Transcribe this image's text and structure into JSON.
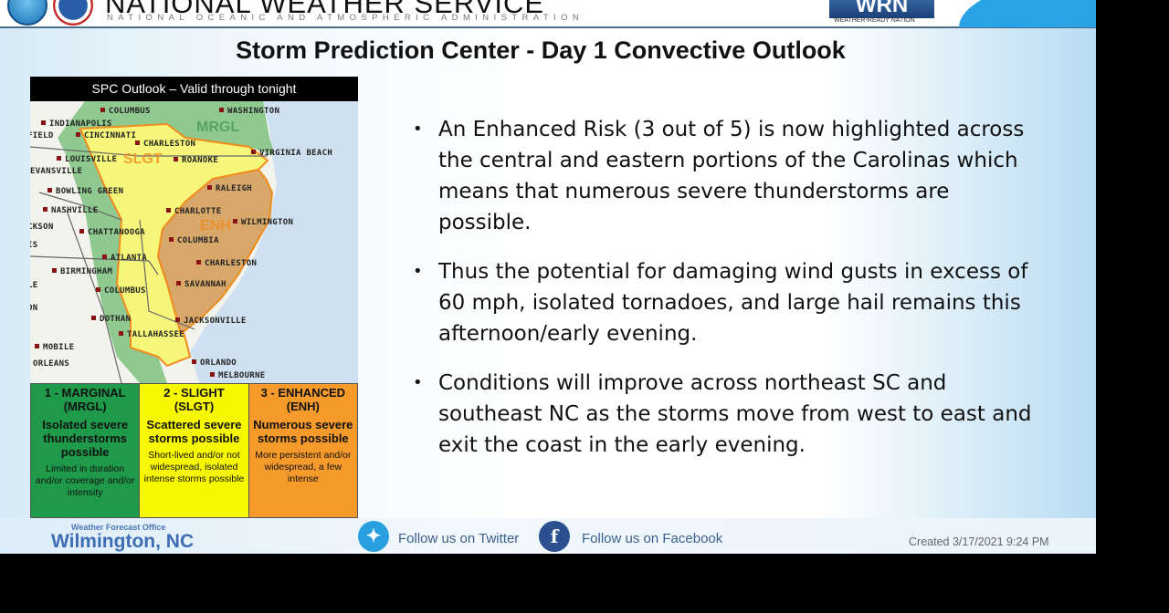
{
  "header": {
    "org_title": "NATIONAL WEATHER SERVICE",
    "org_subtitle": "NATIONAL OCEANIC AND ATMOSPHERIC ADMINISTRATION",
    "wrn_logo": "WRN",
    "wrn_tagline": "WEATHER-READY NATION"
  },
  "title": "Storm Prediction Center - Day 1 Convective Outlook",
  "map": {
    "label": "SPC Outlook – Valid through tonight",
    "zones": {
      "slight": "SLGT",
      "enhanced": "ENH",
      "marginal": "MRGL"
    },
    "cities": [
      "COLUMBUS",
      "WASHINGTON",
      "INDIANAPOLIS",
      "FIELD",
      "CINCINNATI",
      "CHARLESTON",
      "VIRGINIA BEACH",
      "LOUISVILLE",
      "ROANOKE",
      "EVANSVILLE",
      "BOWLING GREEN",
      "RALEIGH",
      "NASHVILLE",
      "CHARLOTTE",
      "WILMINGTON",
      "CKSON",
      "CHATTANOOGA",
      "COLUMBIA",
      "IS",
      "ATLANTA",
      "CHARLESTON",
      "BIRMINGHAM",
      "LE",
      "SAVANNAH",
      "COLUMBUS",
      "ON",
      "DOTHAN",
      "JACKSONVILLE",
      "TALLAHASSEE",
      "MOBILE",
      "ORLEANS",
      "ORLANDO",
      "MELBOURNE"
    ],
    "colors": {
      "marginal": "#7dc17d",
      "slight": "#f6f67a",
      "enhanced": "#d8a86a",
      "water": "#cfe1f1"
    }
  },
  "legend": [
    {
      "level": "1 - MARGINAL",
      "code": "(MRGL)",
      "desc": "Isolated severe thunderstorms possible",
      "detail": "Limited in duration and/or coverage and/or intensity",
      "color": "#1e9a4a"
    },
    {
      "level": "2 - SLIGHT",
      "code": "(SLGT)",
      "desc": "Scattered severe storms possible",
      "detail": "Short-lived and/or not widespread, isolated intense storms possible",
      "color": "#f7f700"
    },
    {
      "level": "3 - ENHANCED",
      "code": "(ENH)",
      "desc": "Numerous severe storms possible",
      "detail": "More persistent and/or widespread, a few intense",
      "color": "#f59a2b"
    }
  ],
  "bullets": [
    "An Enhanced Risk (3 out of 5) is now highlighted across the central and eastern portions of the Carolinas which means that numerous severe thunderstorms are possible.",
    "Thus the potential for damaging wind gusts in excess of 60 mph, isolated tornadoes, and large hail remains this afternoon/early evening.",
    "Conditions will improve across northeast SC and southeast NC as the storms move from west to east and exit the coast in the early evening."
  ],
  "footer": {
    "office_label": "Weather Forecast Office",
    "office": "Wilmington, NC",
    "twitter": "Follow us on Twitter",
    "facebook": "Follow us on Facebook",
    "created": "Created  3/17/2021 9:24 PM"
  }
}
